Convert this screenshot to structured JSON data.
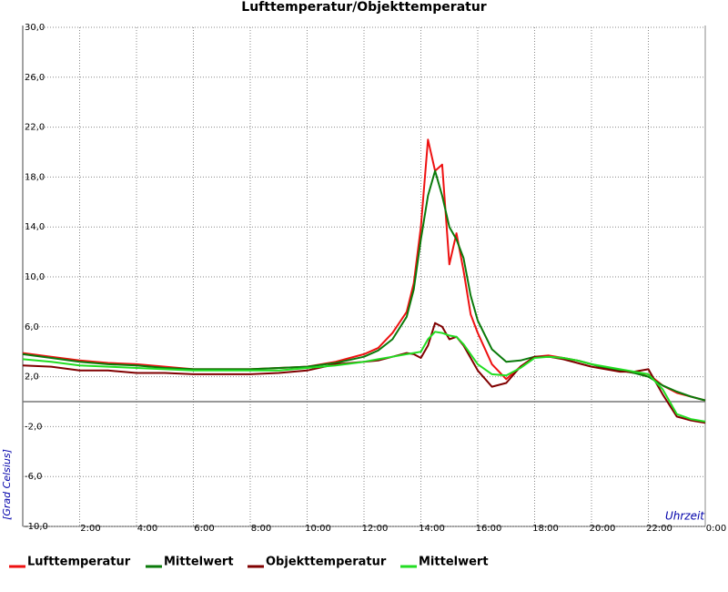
{
  "chart_data": {
    "type": "line",
    "title": "Lufttemperatur/Objekttemperatur",
    "y_label": "[Grad Celsius]",
    "x_label": "Uhrzeit",
    "x": [
      0,
      1,
      2,
      3,
      4,
      5,
      6,
      7,
      8,
      9,
      10,
      11,
      12,
      12.5,
      13,
      13.5,
      13.75,
      14,
      14.25,
      14.5,
      14.75,
      15,
      15.25,
      15.5,
      15.75,
      16,
      16.5,
      17,
      17.5,
      18,
      18.5,
      19,
      19.5,
      20,
      20.5,
      21,
      21.5,
      22,
      22.5,
      23,
      23.5,
      24
    ],
    "series": [
      {
        "name": "Lufttemperatur",
        "color": "#ee1111",
        "values": [
          3.9,
          3.6,
          3.3,
          3.1,
          3.0,
          2.8,
          2.6,
          2.6,
          2.6,
          2.7,
          2.8,
          3.2,
          3.8,
          4.3,
          5.5,
          7.2,
          9.5,
          14.0,
          21.0,
          18.5,
          19.0,
          11.0,
          13.5,
          10.5,
          7.0,
          5.5,
          3.0,
          1.8,
          2.8,
          3.6,
          3.7,
          3.5,
          3.3,
          3.0,
          2.7,
          2.5,
          2.3,
          2.2,
          1.3,
          0.7,
          0.4,
          0.1
        ]
      },
      {
        "name": "Mittelwert",
        "color": "#0a7a0a",
        "values": [
          3.8,
          3.5,
          3.2,
          3.0,
          2.9,
          2.7,
          2.6,
          2.6,
          2.6,
          2.7,
          2.8,
          3.1,
          3.6,
          4.1,
          5.0,
          6.8,
          9.0,
          13.0,
          16.5,
          18.5,
          16.5,
          14.0,
          13.0,
          11.5,
          8.5,
          6.5,
          4.2,
          3.2,
          3.3,
          3.6,
          3.6,
          3.5,
          3.3,
          3.0,
          2.7,
          2.5,
          2.3,
          2.0,
          1.3,
          0.8,
          0.4,
          0.1
        ]
      },
      {
        "name": "Objekttemperatur",
        "color": "#800000",
        "values": [
          2.9,
          2.8,
          2.5,
          2.5,
          2.3,
          2.3,
          2.2,
          2.2,
          2.2,
          2.3,
          2.5,
          3.0,
          3.2,
          3.3,
          3.6,
          3.9,
          3.8,
          3.5,
          4.5,
          6.3,
          6.0,
          5.0,
          5.2,
          4.5,
          3.5,
          2.5,
          1.2,
          1.5,
          2.8,
          3.6,
          3.6,
          3.4,
          3.1,
          2.8,
          2.6,
          2.4,
          2.4,
          2.6,
          0.6,
          -1.2,
          -1.5,
          -1.7
        ]
      },
      {
        "name": "Mittelwert",
        "color": "#22dd22",
        "values": [
          3.4,
          3.2,
          2.9,
          2.8,
          2.7,
          2.6,
          2.5,
          2.5,
          2.5,
          2.5,
          2.7,
          2.9,
          3.2,
          3.4,
          3.6,
          3.8,
          3.9,
          4.0,
          5.0,
          5.6,
          5.5,
          5.3,
          5.2,
          4.6,
          3.8,
          3.0,
          2.2,
          2.1,
          2.7,
          3.5,
          3.6,
          3.5,
          3.3,
          3.0,
          2.8,
          2.6,
          2.4,
          2.2,
          1.0,
          -1.0,
          -1.4,
          -1.6
        ]
      }
    ],
    "xlim": [
      0,
      24
    ],
    "xticks": [
      {
        "value": 2,
        "label": "2:00"
      },
      {
        "value": 4,
        "label": "4:00"
      },
      {
        "value": 6,
        "label": "6:00"
      },
      {
        "value": 8,
        "label": "8:00"
      },
      {
        "value": 10,
        "label": "10:00"
      },
      {
        "value": 12,
        "label": "12:00"
      },
      {
        "value": 14,
        "label": "14:00"
      },
      {
        "value": 16,
        "label": "16:00"
      },
      {
        "value": 18,
        "label": "18:00"
      },
      {
        "value": 20,
        "label": "20:00"
      },
      {
        "value": 22,
        "label": "22:00"
      },
      {
        "value": 24,
        "label": "0:00"
      }
    ],
    "ylim": [
      -10,
      30
    ],
    "yticks": [
      {
        "value": -10,
        "label": "-10,0"
      },
      {
        "value": -6,
        "label": "-6,0"
      },
      {
        "value": -2,
        "label": "-2,0"
      },
      {
        "value": 2,
        "label": "2,0"
      },
      {
        "value": 6,
        "label": "6,0"
      },
      {
        "value": 10,
        "label": "10,0"
      },
      {
        "value": 14,
        "label": "14,0"
      },
      {
        "value": 18,
        "label": "18,0"
      },
      {
        "value": 22,
        "label": "22,0"
      },
      {
        "value": 26,
        "label": "26,0"
      },
      {
        "value": 30,
        "label": "30,0"
      }
    ],
    "grid": true,
    "legend": "bottom"
  }
}
